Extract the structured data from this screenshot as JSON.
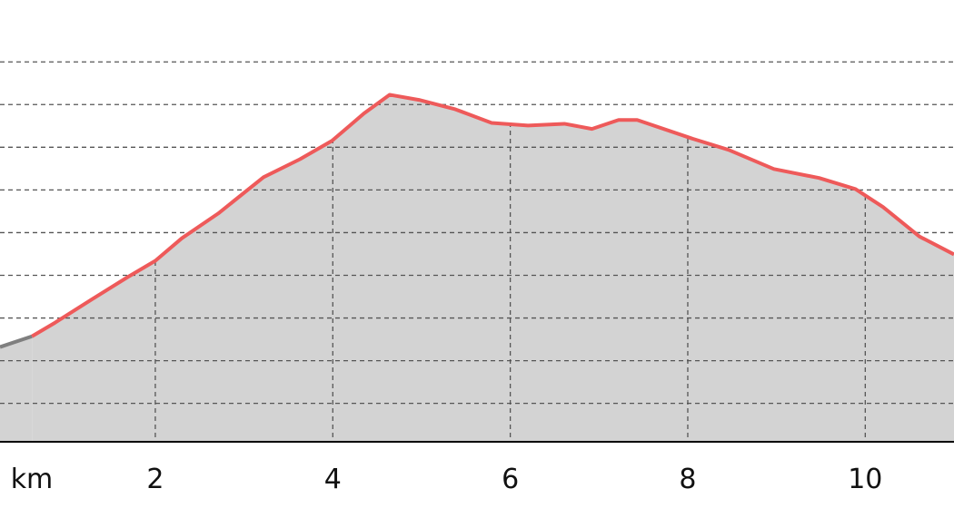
{
  "chart_data": {
    "type": "area",
    "x_label": "km",
    "xlim": [
      0.25,
      11.0
    ],
    "xticks": [
      2,
      4,
      6,
      8,
      10
    ],
    "ylim": [
      0.1,
      10.45
    ],
    "ygrid": [
      1,
      2,
      3,
      4,
      5,
      6,
      7,
      8,
      9
    ],
    "grid": true,
    "fill_color": "#d3d3d3",
    "series": [
      {
        "color": "#7f7f7f",
        "x": [
          0.25,
          0.61
        ],
        "values": [
          2.32,
          2.57
        ]
      },
      {
        "color": "#ee5a5a",
        "x": [
          0.61,
          0.87,
          1.28,
          1.69,
          2.0,
          2.3,
          2.71,
          3.22,
          3.63,
          3.99,
          4.35,
          4.64,
          4.97,
          5.38,
          5.79,
          6.2,
          6.61,
          6.92,
          7.22,
          7.43,
          8.04,
          8.46,
          8.97,
          9.48,
          9.89,
          10.2,
          10.61,
          11.0
        ],
        "values": [
          2.57,
          2.89,
          3.43,
          3.96,
          4.34,
          4.87,
          5.45,
          6.3,
          6.72,
          7.15,
          7.79,
          8.23,
          8.11,
          7.89,
          7.57,
          7.51,
          7.55,
          7.43,
          7.64,
          7.64,
          7.21,
          6.94,
          6.49,
          6.28,
          6.02,
          5.6,
          4.91,
          4.49
        ]
      }
    ]
  }
}
